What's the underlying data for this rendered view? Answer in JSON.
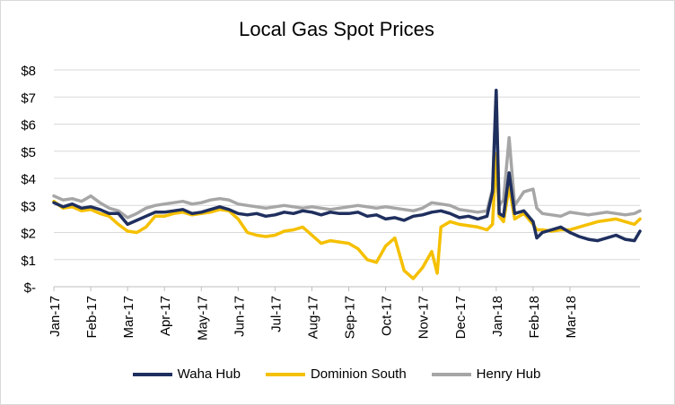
{
  "chart_data": {
    "type": "line",
    "title": "Local Gas Spot Prices",
    "xlabel": "",
    "ylabel": "",
    "ylim": [
      0,
      8
    ],
    "yticks": [
      0,
      1,
      2,
      3,
      4,
      5,
      6,
      7,
      8
    ],
    "ytick_labels": [
      "$-",
      "$1",
      "$2",
      "$3",
      "$4",
      "$5",
      "$6",
      "$7",
      "$8"
    ],
    "xlim": [
      0,
      15.9
    ],
    "xtick_labels": [
      "Jan-17",
      "Feb-17",
      "Mar-17",
      "Apr-17",
      "May-17",
      "Jun-17",
      "Jul-17",
      "Aug-17",
      "Sep-17",
      "Oct-17",
      "Nov-17",
      "Dec-17",
      "Jan-18",
      "Feb-18",
      "Mar-18"
    ],
    "x_unit": "month index (0 = Jan-17)",
    "grid": "horizontal",
    "legend": "bottom",
    "series": [
      {
        "name": "Waha Hub",
        "color": "#1f2f5e",
        "points": [
          [
            0,
            3.1
          ],
          [
            0.25,
            2.95
          ],
          [
            0.5,
            3.05
          ],
          [
            0.75,
            2.9
          ],
          [
            1,
            2.95
          ],
          [
            1.25,
            2.85
          ],
          [
            1.5,
            2.7
          ],
          [
            1.75,
            2.7
          ],
          [
            2,
            2.3
          ],
          [
            2.25,
            2.45
          ],
          [
            2.5,
            2.6
          ],
          [
            2.75,
            2.75
          ],
          [
            3,
            2.75
          ],
          [
            3.25,
            2.8
          ],
          [
            3.5,
            2.85
          ],
          [
            3.75,
            2.7
          ],
          [
            4,
            2.75
          ],
          [
            4.25,
            2.85
          ],
          [
            4.5,
            2.95
          ],
          [
            4.75,
            2.85
          ],
          [
            5,
            2.7
          ],
          [
            5.25,
            2.65
          ],
          [
            5.5,
            2.7
          ],
          [
            5.75,
            2.6
          ],
          [
            6,
            2.65
          ],
          [
            6.25,
            2.75
          ],
          [
            6.5,
            2.7
          ],
          [
            6.75,
            2.8
          ],
          [
            7,
            2.75
          ],
          [
            7.25,
            2.65
          ],
          [
            7.5,
            2.75
          ],
          [
            7.75,
            2.7
          ],
          [
            8,
            2.7
          ],
          [
            8.25,
            2.75
          ],
          [
            8.5,
            2.6
          ],
          [
            8.75,
            2.65
          ],
          [
            9,
            2.5
          ],
          [
            9.25,
            2.55
          ],
          [
            9.5,
            2.45
          ],
          [
            9.75,
            2.6
          ],
          [
            10,
            2.65
          ],
          [
            10.25,
            2.75
          ],
          [
            10.5,
            2.8
          ],
          [
            10.75,
            2.7
          ],
          [
            11,
            2.55
          ],
          [
            11.25,
            2.6
          ],
          [
            11.5,
            2.5
          ],
          [
            11.75,
            2.6
          ],
          [
            11.9,
            3.5
          ],
          [
            12.0,
            7.25
          ],
          [
            12.08,
            2.7
          ],
          [
            12.2,
            2.6
          ],
          [
            12.35,
            4.2
          ],
          [
            12.5,
            2.7
          ],
          [
            12.75,
            2.8
          ],
          [
            13,
            2.4
          ],
          [
            13.1,
            1.8
          ],
          [
            13.25,
            2.0
          ],
          [
            13.5,
            2.1
          ],
          [
            13.75,
            2.2
          ],
          [
            14,
            2.0
          ],
          [
            14.25,
            1.85
          ],
          [
            14.5,
            1.75
          ],
          [
            14.75,
            1.7
          ],
          [
            15,
            1.8
          ],
          [
            15.25,
            1.9
          ],
          [
            15.5,
            1.75
          ],
          [
            15.75,
            1.7
          ],
          [
            15.9,
            2.05
          ]
        ]
      },
      {
        "name": "Dominion South",
        "color": "#f5c000",
        "points": [
          [
            0,
            3.15
          ],
          [
            0.25,
            2.9
          ],
          [
            0.5,
            2.95
          ],
          [
            0.75,
            2.8
          ],
          [
            1,
            2.85
          ],
          [
            1.25,
            2.7
          ],
          [
            1.5,
            2.6
          ],
          [
            1.75,
            2.3
          ],
          [
            2,
            2.05
          ],
          [
            2.25,
            2.0
          ],
          [
            2.5,
            2.2
          ],
          [
            2.75,
            2.6
          ],
          [
            3,
            2.6
          ],
          [
            3.25,
            2.7
          ],
          [
            3.5,
            2.75
          ],
          [
            3.75,
            2.65
          ],
          [
            4,
            2.7
          ],
          [
            4.25,
            2.75
          ],
          [
            4.5,
            2.85
          ],
          [
            4.75,
            2.8
          ],
          [
            5,
            2.5
          ],
          [
            5.25,
            2.0
          ],
          [
            5.5,
            1.9
          ],
          [
            5.75,
            1.85
          ],
          [
            6,
            1.9
          ],
          [
            6.25,
            2.05
          ],
          [
            6.5,
            2.1
          ],
          [
            6.75,
            2.2
          ],
          [
            7,
            1.9
          ],
          [
            7.25,
            1.6
          ],
          [
            7.5,
            1.7
          ],
          [
            7.75,
            1.65
          ],
          [
            8,
            1.6
          ],
          [
            8.25,
            1.4
          ],
          [
            8.5,
            1.0
          ],
          [
            8.75,
            0.9
          ],
          [
            9,
            1.5
          ],
          [
            9.25,
            1.8
          ],
          [
            9.5,
            0.6
          ],
          [
            9.75,
            0.3
          ],
          [
            10,
            0.7
          ],
          [
            10.25,
            1.3
          ],
          [
            10.4,
            0.5
          ],
          [
            10.5,
            2.2
          ],
          [
            10.75,
            2.4
          ],
          [
            11,
            2.3
          ],
          [
            11.25,
            2.25
          ],
          [
            11.5,
            2.2
          ],
          [
            11.75,
            2.1
          ],
          [
            11.9,
            2.3
          ],
          [
            12.0,
            4.9
          ],
          [
            12.08,
            2.6
          ],
          [
            12.2,
            2.4
          ],
          [
            12.35,
            3.7
          ],
          [
            12.5,
            2.5
          ],
          [
            12.75,
            2.7
          ],
          [
            13,
            2.3
          ],
          [
            13.1,
            2.1
          ],
          [
            13.25,
            2.1
          ],
          [
            13.5,
            2.05
          ],
          [
            13.75,
            2.1
          ],
          [
            14,
            2.1
          ],
          [
            14.25,
            2.2
          ],
          [
            14.5,
            2.3
          ],
          [
            14.75,
            2.4
          ],
          [
            15,
            2.45
          ],
          [
            15.25,
            2.5
          ],
          [
            15.5,
            2.4
          ],
          [
            15.75,
            2.3
          ],
          [
            15.9,
            2.5
          ]
        ]
      },
      {
        "name": "Henry Hub",
        "color": "#a6a6a6",
        "points": [
          [
            0,
            3.35
          ],
          [
            0.25,
            3.2
          ],
          [
            0.5,
            3.25
          ],
          [
            0.75,
            3.15
          ],
          [
            1,
            3.35
          ],
          [
            1.25,
            3.1
          ],
          [
            1.5,
            2.9
          ],
          [
            1.75,
            2.8
          ],
          [
            2,
            2.55
          ],
          [
            2.25,
            2.7
          ],
          [
            2.5,
            2.9
          ],
          [
            2.75,
            3.0
          ],
          [
            3,
            3.05
          ],
          [
            3.25,
            3.1
          ],
          [
            3.5,
            3.15
          ],
          [
            3.75,
            3.05
          ],
          [
            4,
            3.1
          ],
          [
            4.25,
            3.2
          ],
          [
            4.5,
            3.25
          ],
          [
            4.75,
            3.2
          ],
          [
            5,
            3.05
          ],
          [
            5.25,
            3.0
          ],
          [
            5.5,
            2.95
          ],
          [
            5.75,
            2.9
          ],
          [
            6,
            2.95
          ],
          [
            6.25,
            3.0
          ],
          [
            6.5,
            2.95
          ],
          [
            6.75,
            2.9
          ],
          [
            7,
            2.95
          ],
          [
            7.25,
            2.9
          ],
          [
            7.5,
            2.85
          ],
          [
            7.75,
            2.9
          ],
          [
            8,
            2.95
          ],
          [
            8.25,
            3.0
          ],
          [
            8.5,
            2.95
          ],
          [
            8.75,
            2.9
          ],
          [
            9,
            2.95
          ],
          [
            9.25,
            2.9
          ],
          [
            9.5,
            2.85
          ],
          [
            9.75,
            2.8
          ],
          [
            10,
            2.9
          ],
          [
            10.25,
            3.1
          ],
          [
            10.5,
            3.05
          ],
          [
            10.75,
            3.0
          ],
          [
            11,
            2.85
          ],
          [
            11.25,
            2.8
          ],
          [
            11.5,
            2.75
          ],
          [
            11.75,
            2.8
          ],
          [
            11.9,
            3.6
          ],
          [
            12.0,
            7.2
          ],
          [
            12.08,
            3.0
          ],
          [
            12.2,
            3.2
          ],
          [
            12.35,
            5.5
          ],
          [
            12.5,
            3.0
          ],
          [
            12.75,
            3.5
          ],
          [
            13,
            3.6
          ],
          [
            13.1,
            2.9
          ],
          [
            13.25,
            2.7
          ],
          [
            13.5,
            2.65
          ],
          [
            13.75,
            2.6
          ],
          [
            14,
            2.75
          ],
          [
            14.25,
            2.7
          ],
          [
            14.5,
            2.65
          ],
          [
            14.75,
            2.7
          ],
          [
            15,
            2.75
          ],
          [
            15.25,
            2.7
          ],
          [
            15.5,
            2.65
          ],
          [
            15.75,
            2.7
          ],
          [
            15.9,
            2.8
          ]
        ]
      }
    ]
  }
}
